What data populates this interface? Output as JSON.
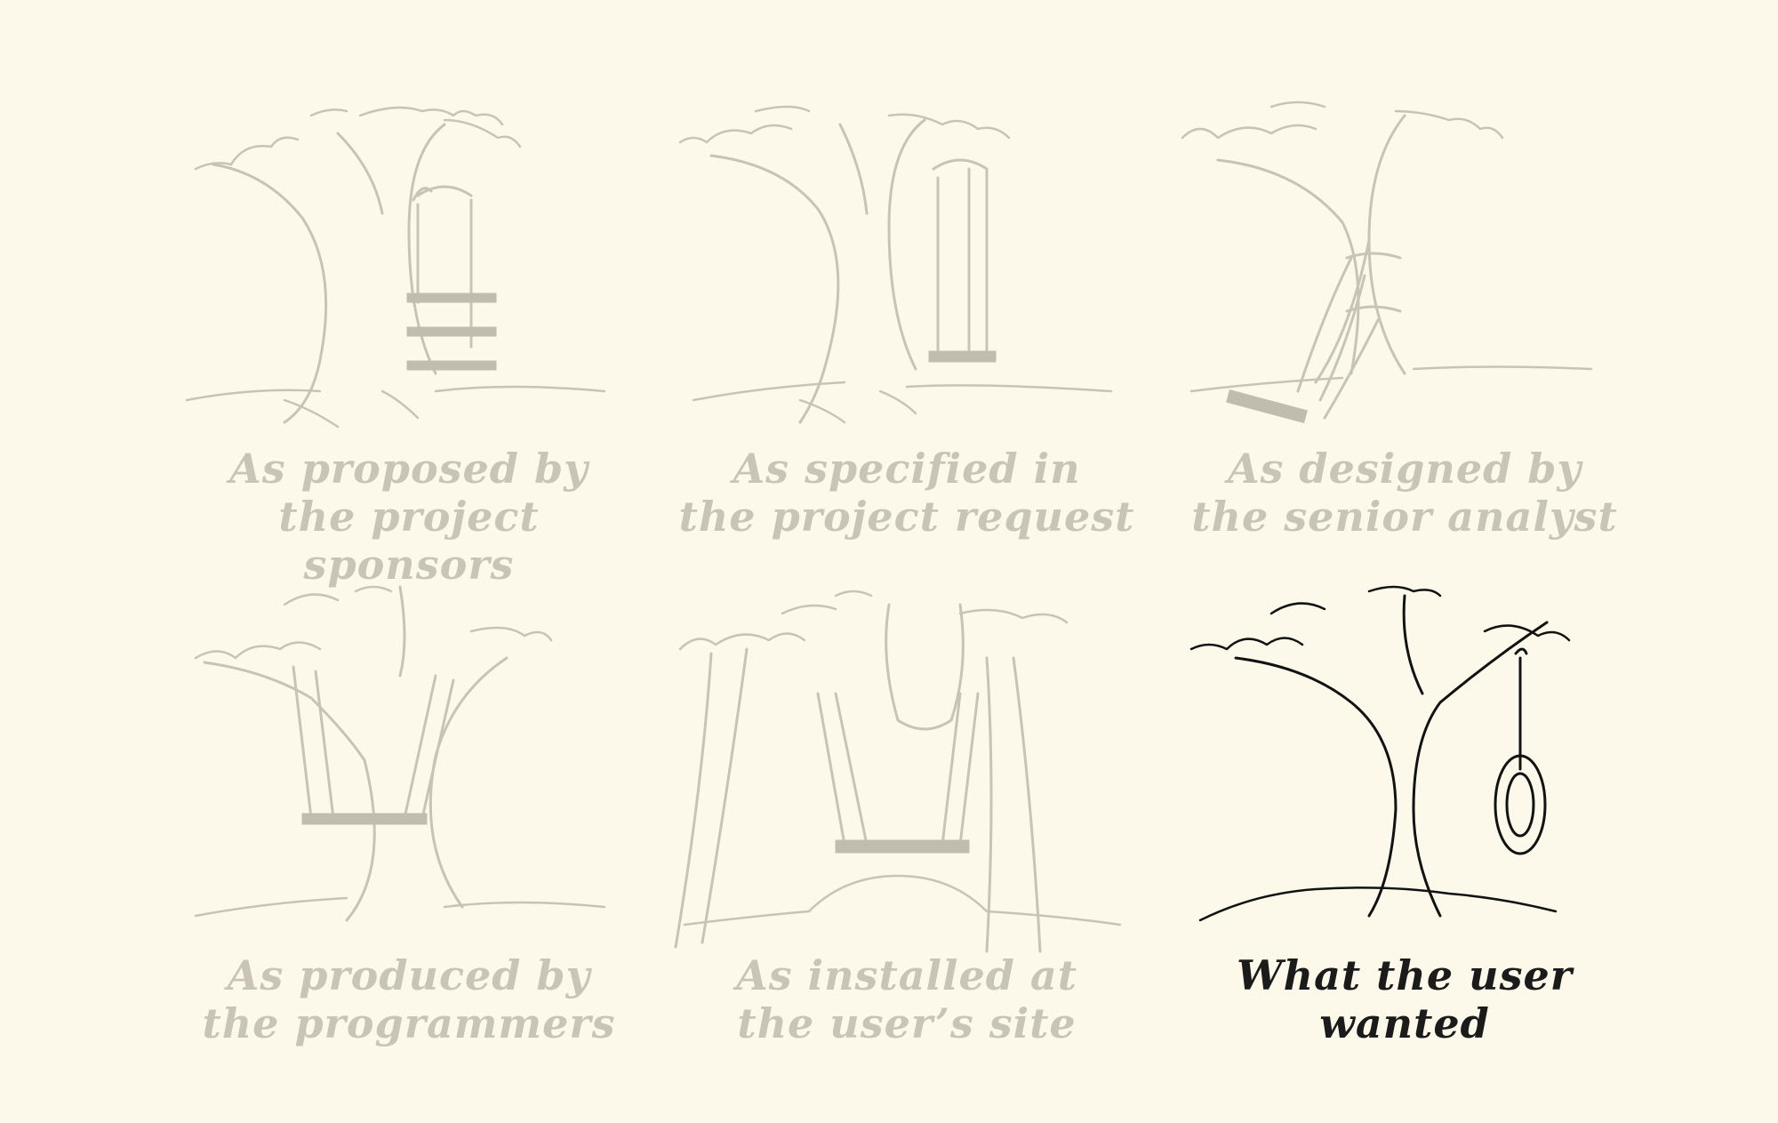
{
  "panels": [
    {
      "caption": [
        "As proposed by",
        "the project sponsors"
      ]
    },
    {
      "caption": [
        "As specified in",
        "the project request"
      ]
    },
    {
      "caption": [
        "As designed by",
        "the senior analyst"
      ]
    },
    {
      "caption": [
        "As produced by",
        "the programmers"
      ]
    },
    {
      "caption": [
        "As installed at",
        "the user’s site"
      ]
    },
    {
      "caption": [
        "What the user",
        "wanted"
      ]
    }
  ]
}
